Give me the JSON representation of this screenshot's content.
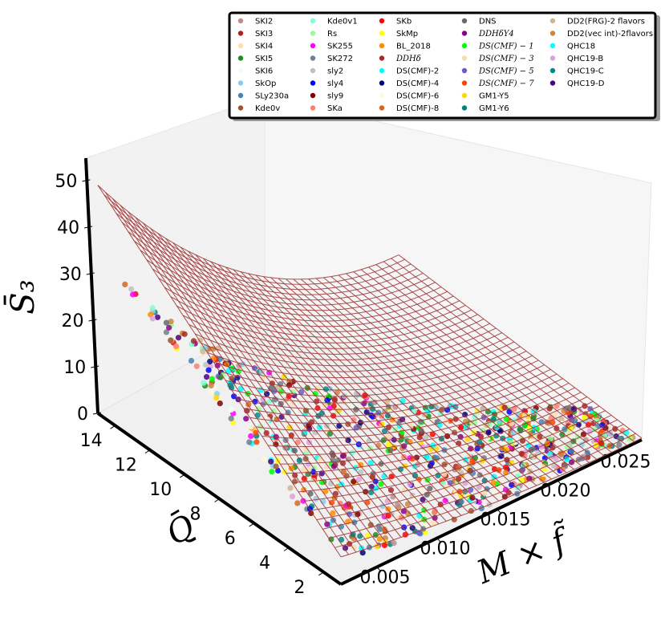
{
  "chart_data": {
    "type": "scatter",
    "projection": "3d",
    "surface": {
      "type": "wireframe",
      "color": "#a03a3a"
    },
    "axes": {
      "x": {
        "label": "M × f̃",
        "ticks": [
          "0.005",
          "0.010",
          "0.015",
          "0.020",
          "0.025"
        ],
        "range": [
          0.002,
          0.027
        ]
      },
      "y": {
        "label": "Q̄",
        "ticks": [
          "2",
          "4",
          "6",
          "8",
          "10",
          "12",
          "14"
        ],
        "range": [
          1,
          15
        ]
      },
      "z": {
        "label": "S̄₃",
        "ticks": [
          "0",
          "10",
          "20",
          "30",
          "40",
          "50"
        ],
        "range": [
          0,
          55
        ]
      }
    },
    "legend_placement": "top",
    "legend": [
      {
        "label": "SKI2",
        "color": "#bc8f8f"
      },
      {
        "label": "SKI3",
        "color": "#b22222"
      },
      {
        "label": "SKI4",
        "color": "#ffdead"
      },
      {
        "label": "SKI5",
        "color": "#228b22"
      },
      {
        "label": "SKI6",
        "color": "#f0fff0"
      },
      {
        "label": "SkOp",
        "color": "#87ceeb"
      },
      {
        "label": "SLy230a",
        "color": "#4682b4"
      },
      {
        "label": "Kde0v",
        "color": "#a0522d"
      },
      {
        "label": "Kde0v1",
        "color": "#7fffd4"
      },
      {
        "label": "Rs",
        "color": "#98fb98"
      },
      {
        "label": "SK255",
        "color": "#ff00ff"
      },
      {
        "label": "SK272",
        "color": "#708090"
      },
      {
        "label": "sly2",
        "color": "#c0c0c0"
      },
      {
        "label": "sly4",
        "color": "#0000ff"
      },
      {
        "label": "sly9",
        "color": "#800000"
      },
      {
        "label": "SKa",
        "color": "#fa8072"
      },
      {
        "label": "SKb",
        "color": "#ff0000"
      },
      {
        "label": "SkMp",
        "color": "#ffff00"
      },
      {
        "label": "BL_2018",
        "color": "#ff8c00"
      },
      {
        "label": "DDHδ",
        "color": "#a52a2a",
        "math": true
      },
      {
        "label": "DS(CMF)-2",
        "color": "#00ffff"
      },
      {
        "label": "DS(CMF)-4",
        "color": "#000080"
      },
      {
        "label": "DS(CMF)-6",
        "color": "#fff8dc"
      },
      {
        "label": "DS(CMF)-8",
        "color": "#d2691e"
      },
      {
        "label": "DNS",
        "color": "#696969"
      },
      {
        "label": "DDHδY4",
        "color": "#8b008b",
        "math": true
      },
      {
        "label": "DS(CMF) − 1",
        "color": "#00ff00",
        "math": true
      },
      {
        "label": "DS(CMF) − 3",
        "color": "#f5deb3",
        "math": true
      },
      {
        "label": "DS(CMF) − 5",
        "color": "#6a5acd",
        "math": true
      },
      {
        "label": "DS(CMF) − 7",
        "color": "#ff4500",
        "math": true
      },
      {
        "label": "GM1-Y5",
        "color": "#ffd700"
      },
      {
        "label": "GM1-Y6",
        "color": "#008080"
      },
      {
        "label": "DD2(FRG)-2 flavors",
        "color": "#d2b48c"
      },
      {
        "label": "DD2(vec int)-2flavors",
        "color": "#cd853f"
      },
      {
        "label": "QHC18",
        "color": "#00ffff"
      },
      {
        "label": "QHC19-B",
        "color": "#dda0dd"
      },
      {
        "label": "QHC19-C",
        "color": "#008b8b"
      },
      {
        "label": "QHC19-D",
        "color": "#4b0082"
      }
    ],
    "grid": false
  }
}
